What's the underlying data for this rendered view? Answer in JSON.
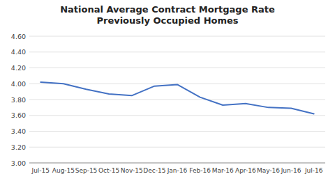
{
  "chart_data": {
    "type": "line",
    "title": "National Average Contract Mortgage Rate\nPreviously Occupied Homes",
    "categories": [
      "Jul-15",
      "Aug-15",
      "Sep-15",
      "Oct-15",
      "Nov-15",
      "Dec-15",
      "Jan-16",
      "Feb-16",
      "Mar-16",
      "Apr-16",
      "May-16",
      "Jun-16",
      "Jul-16"
    ],
    "values": [
      4.02,
      4.0,
      3.93,
      3.87,
      3.85,
      3.97,
      3.99,
      3.83,
      3.73,
      3.75,
      3.7,
      3.69,
      3.62
    ],
    "color": "#4472C4",
    "ylim": [
      3.0,
      4.6
    ],
    "yticks": [
      {
        "value": 3.0,
        "label": "3.00"
      },
      {
        "value": 3.2,
        "label": "3.20"
      },
      {
        "value": 3.4,
        "label": "3.40"
      },
      {
        "value": 3.6,
        "label": "3.60"
      },
      {
        "value": 3.8,
        "label": "3.80"
      },
      {
        "value": 4.0,
        "label": "4.00"
      },
      {
        "value": 4.2,
        "label": "4.20"
      },
      {
        "value": 4.4,
        "label": "4.40"
      },
      {
        "value": 4.6,
        "label": "4.60"
      }
    ],
    "grid": true
  }
}
